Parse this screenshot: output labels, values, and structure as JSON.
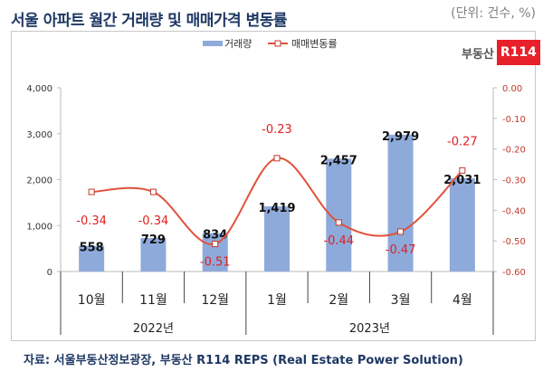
{
  "title": "서울 아파트 월간 거래량 및 매매가격 변동률",
  "unit": "(단위: 건수, %)",
  "source": "자료: 서울부동산정보광장, 부동산 R114 REPS (Real Estate Power Solution)",
  "logo": {
    "text": "부동산",
    "badge": "R114"
  },
  "chart_data": {
    "type": "bar+line",
    "categories": [
      "10월",
      "11월",
      "12월",
      "1월",
      "2월",
      "3월",
      "4월"
    ],
    "year_groups": [
      {
        "label": "2022년",
        "span": 3
      },
      {
        "label": "2023년",
        "span": 4
      }
    ],
    "series": [
      {
        "name": "거래량",
        "type": "bar",
        "axis": "left",
        "color": "#8eaadb",
        "values": [
          558,
          729,
          834,
          1419,
          2457,
          2979,
          2031
        ],
        "labels": [
          "558",
          "729",
          "834",
          "1,419",
          "2,457",
          "2,979",
          "2,031"
        ]
      },
      {
        "name": "매매변동률",
        "type": "line",
        "axis": "right",
        "color": "#e0523a",
        "values": [
          -0.34,
          -0.34,
          -0.51,
          -0.23,
          -0.44,
          -0.47,
          -0.27
        ],
        "labels": [
          "-0.34",
          "-0.34",
          "-0.51",
          "-0.23",
          "-0.44",
          "-0.47",
          "-0.27"
        ]
      }
    ],
    "left_axis": {
      "range": [
        0,
        4000
      ],
      "ticks": [
        "0",
        "1,000",
        "2,000",
        "3,000",
        "4,000"
      ]
    },
    "right_axis": {
      "range": [
        -0.6,
        0
      ],
      "ticks": [
        "-0.60",
        "-0.50",
        "-0.40",
        "-0.30",
        "-0.20",
        "-0.10",
        "0.00"
      ]
    },
    "legend": "top",
    "grid": false
  }
}
